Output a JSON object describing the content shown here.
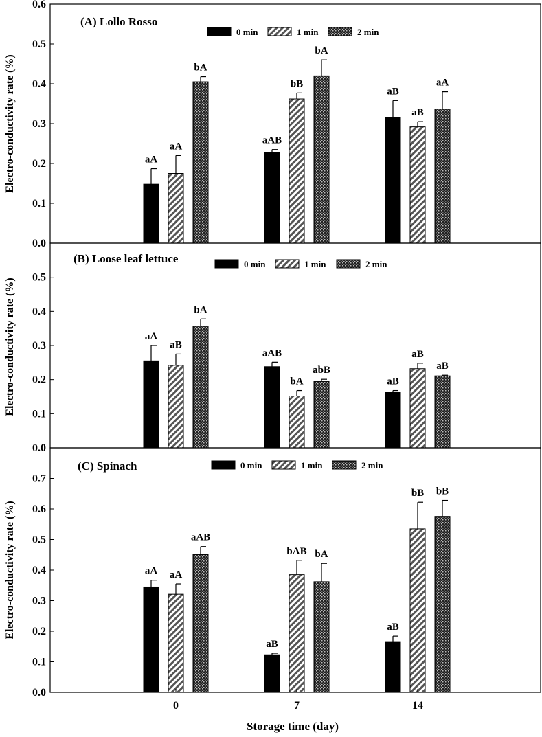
{
  "chart_data": [
    {
      "type": "bar",
      "title": "(A) Lollo Rosso",
      "categories": [
        "0",
        "7",
        "14"
      ],
      "ylabel": "Electro-conductivity rate (%)",
      "ylim": [
        0,
        0.6
      ],
      "yticks": [
        "0.0",
        "0.1",
        "0.2",
        "0.3",
        "0.4",
        "0.5",
        "0.6"
      ],
      "series": [
        {
          "name": "0 min",
          "values": [
            0.148,
            0.228,
            0.315
          ],
          "errors": [
            0.039,
            0.007,
            0.043
          ],
          "labels": [
            "aA",
            "aAB",
            "aB"
          ]
        },
        {
          "name": "1 min",
          "values": [
            0.175,
            0.362,
            0.292
          ],
          "errors": [
            0.045,
            0.015,
            0.013
          ],
          "labels": [
            "aA",
            "bB",
            "aB"
          ]
        },
        {
          "name": "2 min",
          "values": [
            0.405,
            0.42,
            0.337
          ],
          "errors": [
            0.013,
            0.04,
            0.043
          ],
          "labels": [
            "bA",
            "bA",
            "aA"
          ]
        }
      ]
    },
    {
      "type": "bar",
      "title": "(B) Loose leaf lettuce",
      "categories": [
        "0",
        "7",
        "14"
      ],
      "ylabel": "Electro-conductivity rate (%)",
      "ylim": [
        0,
        0.6
      ],
      "yticks": [
        "0.0",
        "0.1",
        "0.2",
        "0.3",
        "0.4",
        "0.5"
      ],
      "series": [
        {
          "name": "0 min",
          "values": [
            0.255,
            0.238,
            0.164
          ],
          "errors": [
            0.045,
            0.013,
            0.004
          ],
          "labels": [
            "aA",
            "aAB",
            "aB"
          ]
        },
        {
          "name": "1 min",
          "values": [
            0.242,
            0.152,
            0.232
          ],
          "errors": [
            0.033,
            0.016,
            0.016
          ],
          "labels": [
            "aB",
            "bA",
            "aB"
          ]
        },
        {
          "name": "2 min",
          "values": [
            0.357,
            0.195,
            0.211
          ],
          "errors": [
            0.021,
            0.006,
            0.002
          ],
          "labels": [
            "bA",
            "abB",
            "aB"
          ]
        }
      ]
    },
    {
      "type": "bar",
      "title": "(C) Spinach",
      "categories": [
        "0",
        "7",
        "14"
      ],
      "xlabel": "Storage time (day)",
      "ylabel": "Electro-conductivity rate (%)",
      "ylim": [
        0,
        0.8
      ],
      "yticks": [
        "0.0",
        "0.1",
        "0.2",
        "0.3",
        "0.4",
        "0.5",
        "0.6",
        "0.7"
      ],
      "series": [
        {
          "name": "0 min",
          "values": [
            0.345,
            0.123,
            0.166
          ],
          "errors": [
            0.022,
            0.005,
            0.018
          ],
          "labels": [
            "aA",
            "aB",
            "aB"
          ]
        },
        {
          "name": "1 min",
          "values": [
            0.321,
            0.385,
            0.535
          ],
          "errors": [
            0.034,
            0.047,
            0.087
          ],
          "labels": [
            "aA",
            "bAB",
            "bB"
          ]
        },
        {
          "name": "2 min",
          "values": [
            0.451,
            0.362,
            0.576
          ],
          "errors": [
            0.026,
            0.06,
            0.052
          ],
          "labels": [
            "aAB",
            "bA",
            "bB"
          ]
        }
      ]
    }
  ],
  "legend": [
    "0 min",
    "1 min",
    "2 min"
  ],
  "xlabel": "Storage time (day)",
  "colors": {
    "series0": "#000000",
    "stroke": "#000000",
    "background": "#ffffff"
  }
}
